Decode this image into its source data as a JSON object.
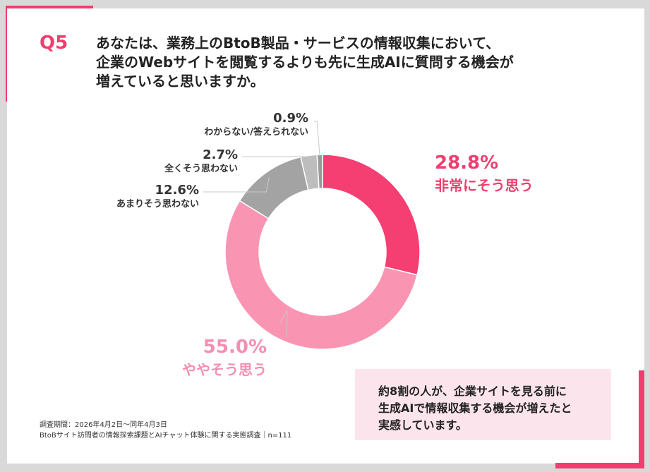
{
  "question": {
    "label": "Q5",
    "lines": [
      "あなたは、業務上のBtoB製品・サービスの情報収集において、",
      "企業のWebサイトを閲覧するよりも先に生成AIに質問する機会が",
      "増えていると思いますか。"
    ]
  },
  "chart_data": {
    "type": "pie",
    "donut": true,
    "categories": [
      "非常にそう思う",
      "ややそう思う",
      "あまりそう思わない",
      "全くそう思わない",
      "わからない/答えられない"
    ],
    "values": [
      28.8,
      55.0,
      12.6,
      2.7,
      0.9
    ],
    "value_labels": [
      "28.8%",
      "55.0%",
      "12.6%",
      "2.7%",
      "0.9%"
    ],
    "colors": [
      "#f53e72",
      "#f995b3",
      "#a3a3a3",
      "#bdbdbd",
      "#9a9a9a"
    ]
  },
  "summary": {
    "lines": [
      "約8割の人が、企業サイトを見る前に",
      "生成AIで情報収集する機会が増えたと",
      "実感しています。"
    ]
  },
  "footnote": {
    "period": "調査期間：2026年4月2日〜同年4月3日",
    "source": "BtoBサイト訪問者の情報探索課題とAIチャット体験に関する実態調査｜n=111"
  }
}
